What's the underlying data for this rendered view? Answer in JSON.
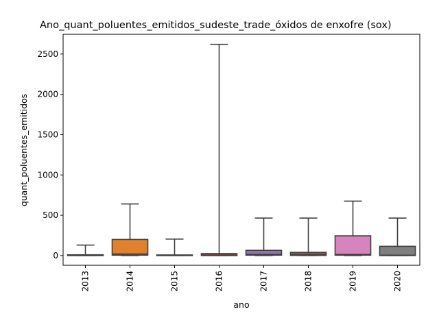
{
  "chart_data": {
    "type": "box",
    "title": "Ano_quant_poluentes_emitidos_sudeste_trade_óxidos de enxofre (sox)",
    "xlabel": "ano",
    "ylabel": "quant_poluentes_emitidos",
    "categories": [
      "2013",
      "2014",
      "2015",
      "2016",
      "2017",
      "2018",
      "2019",
      "2020"
    ],
    "boxes": [
      {
        "min": 0,
        "q1": 0,
        "median": 2,
        "q3": 10,
        "max": 130,
        "color": "#3274a1"
      },
      {
        "min": 0,
        "q1": 5,
        "median": 20,
        "q3": 200,
        "max": 640,
        "color": "#e1812c"
      },
      {
        "min": 0,
        "q1": 0,
        "median": 2,
        "q3": 8,
        "max": 205,
        "color": "#3a923a"
      },
      {
        "min": 0,
        "q1": 0,
        "median": 5,
        "q3": 25,
        "max": 2620,
        "color": "#c03d3e"
      },
      {
        "min": 0,
        "q1": 5,
        "median": 15,
        "q3": 65,
        "max": 465,
        "color": "#9372b2"
      },
      {
        "min": 0,
        "q1": 2,
        "median": 10,
        "q3": 40,
        "max": 465,
        "color": "#845b53"
      },
      {
        "min": 0,
        "q1": 5,
        "median": 15,
        "q3": 245,
        "max": 675,
        "color": "#d684bd"
      },
      {
        "min": 0,
        "q1": 0,
        "median": 5,
        "q3": 115,
        "max": 465,
        "color": "#7f7f7f"
      }
    ],
    "yticks": [
      0,
      500,
      1000,
      1500,
      2000,
      2500
    ],
    "ylim": [
      -120,
      2745
    ],
    "grid": false
  }
}
